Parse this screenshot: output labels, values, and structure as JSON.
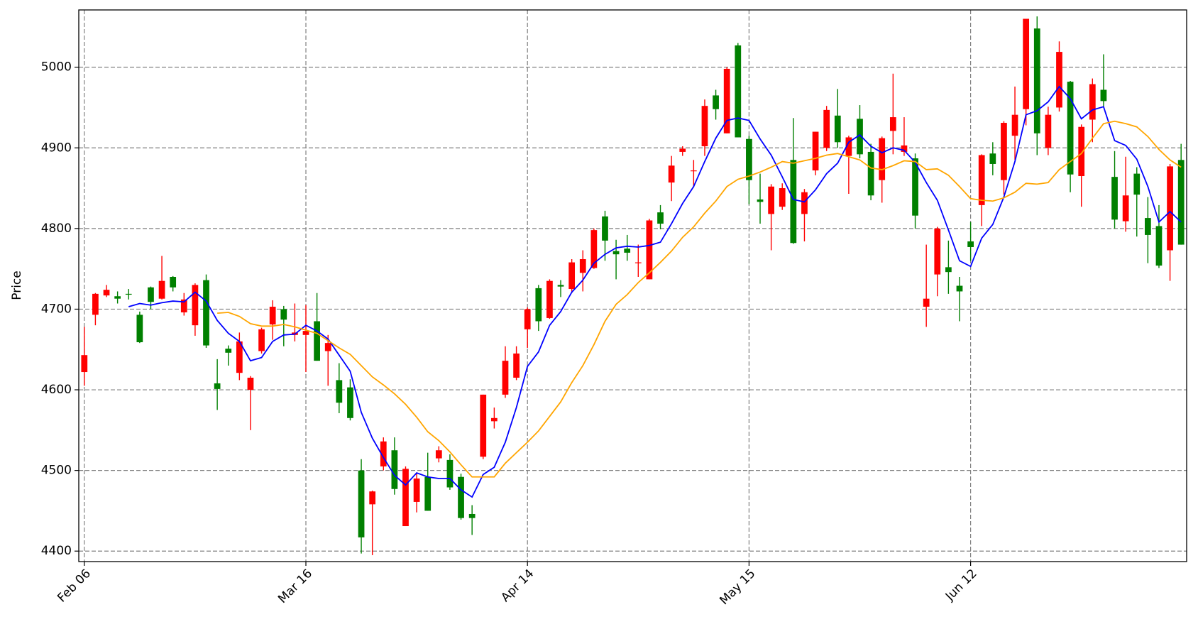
{
  "chart_data": {
    "type": "candlestick",
    "ylabel": "Price",
    "categories": [
      "Feb 06",
      null,
      null,
      null,
      null,
      null,
      null,
      null,
      null,
      null,
      null,
      null,
      null,
      null,
      null,
      null,
      null,
      null,
      null,
      null,
      "Mar 16",
      null,
      null,
      null,
      null,
      null,
      null,
      null,
      null,
      null,
      null,
      null,
      null,
      null,
      null,
      null,
      null,
      null,
      null,
      null,
      "Apr 14",
      null,
      null,
      null,
      null,
      null,
      null,
      null,
      null,
      null,
      null,
      null,
      null,
      null,
      null,
      null,
      null,
      null,
      null,
      null,
      "May 15",
      null,
      null,
      null,
      null,
      null,
      null,
      null,
      null,
      null,
      null,
      null,
      null,
      null,
      null,
      null,
      null,
      null,
      null,
      null,
      "Jun 12",
      null,
      null,
      null,
      null,
      null,
      null,
      null,
      null,
      null,
      null,
      null,
      null,
      null,
      null,
      null,
      null,
      null,
      null,
      null
    ],
    "open": [
      4622,
      4693,
      4717,
      4716,
      4719,
      4693,
      4727,
      4713,
      4740,
      4696,
      4680,
      4736,
      4608,
      4651,
      4621,
      4600,
      4648,
      4681,
      4700,
      4668,
      4668,
      4685,
      4648,
      4612,
      4603,
      4500,
      4458,
      4505,
      4525,
      4431,
      4461,
      4492,
      4515,
      4513,
      4492,
      4446,
      4517,
      4561,
      4594,
      4615,
      4675,
      4726,
      4689,
      4730,
      4725,
      4745,
      4751,
      4815,
      4772,
      4775,
      4757,
      4737,
      4820,
      4857,
      4895,
      4871,
      4902,
      4965,
      4918,
      5027,
      4911,
      4836,
      4818,
      4827,
      4885,
      4818,
      4872,
      4900,
      4940,
      4890,
      4936,
      4895,
      4860,
      4921,
      4895,
      4887,
      4703,
      4743,
      4752,
      4729,
      4784,
      4829,
      4893,
      4860,
      4915,
      4948,
      5048,
      4900,
      4950,
      4982,
      4865,
      4935,
      4972,
      4864,
      4809,
      4868,
      4813,
      4803,
      4773,
      4885
    ],
    "high": [
      4678,
      4720,
      4730,
      4722,
      4725,
      4697,
      4728,
      4766,
      4741,
      4720,
      4732,
      4743,
      4638,
      4655,
      4671,
      4617,
      4677,
      4711,
      4704,
      4707,
      4705,
      4720,
      4668,
      4633,
      4613,
      4514,
      4475,
      4541,
      4541,
      4505,
      4496,
      4522,
      4530,
      4520,
      4496,
      4457,
      4594,
      4578,
      4654,
      4654,
      4702,
      4730,
      4737,
      4736,
      4762,
      4773,
      4800,
      4822,
      4786,
      4792,
      4780,
      4812,
      4829,
      4890,
      4902,
      4885,
      4960,
      4972,
      5000,
      5030,
      4915,
      4868,
      4855,
      4856,
      4937,
      4849,
      4920,
      4952,
      4973,
      4915,
      4953,
      4905,
      4914,
      4992,
      4938,
      4893,
      4780,
      4802,
      4785,
      4740,
      4808,
      4892,
      4907,
      4933,
      4976,
      5060,
      5063,
      4951,
      5032,
      4983,
      4929,
      4986,
      5016,
      4896,
      4889,
      4876,
      4839,
      4829,
      4880,
      4905
    ],
    "low": [
      4605,
      4680,
      4715,
      4707,
      4712,
      4658,
      4700,
      4712,
      4722,
      4692,
      4667,
      4652,
      4575,
      4630,
      4612,
      4550,
      4645,
      4662,
      4654,
      4660,
      4622,
      4636,
      4605,
      4571,
      4562,
      4397,
      4395,
      4500,
      4470,
      4431,
      4448,
      4450,
      4510,
      4476,
      4439,
      4420,
      4514,
      4552,
      4590,
      4612,
      4652,
      4673,
      4688,
      4715,
      4720,
      4722,
      4750,
      4760,
      4737,
      4760,
      4740,
      4737,
      4799,
      4834,
      4890,
      4851,
      4890,
      4935,
      4918,
      4913,
      4830,
      4806,
      4773,
      4823,
      4781,
      4784,
      4866,
      4896,
      4900,
      4843,
      4887,
      4835,
      4832,
      4892,
      4890,
      4800,
      4678,
      4716,
      4719,
      4685,
      4760,
      4803,
      4866,
      4842,
      4885,
      4928,
      4891,
      4891,
      4945,
      4845,
      4827,
      4907,
      4950,
      4800,
      4796,
      4790,
      4757,
      4751,
      4735,
      4780
    ],
    "close": [
      4643,
      4719,
      4724,
      4713,
      4718,
      4659,
      4709,
      4735,
      4727,
      4712,
      4730,
      4655,
      4601,
      4646,
      4660,
      4615,
      4675,
      4703,
      4687,
      4671,
      4673,
      4636,
      4658,
      4584,
      4565,
      4417,
      4474,
      4536,
      4477,
      4502,
      4490,
      4450,
      4525,
      4479,
      4441,
      4441,
      4594,
      4565,
      4636,
      4645,
      4700,
      4685,
      4735,
      4728,
      4758,
      4762,
      4798,
      4785,
      4768,
      4770,
      4758,
      4810,
      4806,
      4878,
      4899,
      4872,
      4952,
      4948,
      4998,
      4913,
      4860,
      4833,
      4852,
      4850,
      4782,
      4845,
      4920,
      4947,
      4907,
      4913,
      4892,
      4841,
      4912,
      4938,
      4903,
      4816,
      4713,
      4800,
      4746,
      4722,
      4777,
      4891,
      4880,
      4931,
      4941,
      5060,
      4918,
      4941,
      5019,
      4867,
      4926,
      4979,
      4958,
      4811,
      4841,
      4842,
      4792,
      4754,
      4877,
      4780
    ],
    "up_color": "#ff0000",
    "down_color": "#008000",
    "lines": [
      {
        "color": "#0000ff",
        "values": [
          null,
          null,
          null,
          null,
          4703,
          4707,
          4705,
          4708,
          4710,
          4709,
          4721,
          4710,
          4686,
          4670,
          4660,
          4636,
          4640,
          4660,
          4668,
          4669,
          4680,
          4673,
          4663,
          4643,
          4623,
          4572,
          4540,
          4516,
          4494,
          4482,
          4497,
          4492,
          4490,
          4490,
          4476,
          4467,
          4495,
          4504,
          4535,
          4578,
          4629,
          4647,
          4680,
          4697,
          4721,
          4736,
          4757,
          4768,
          4776,
          4778,
          4777,
          4779,
          4783,
          4806,
          4831,
          4852,
          4883,
          4912,
          4934,
          4937,
          4934,
          4911,
          4891,
          4864,
          4836,
          4833,
          4848,
          4868,
          4881,
          4907,
          4916,
          4902,
          4894,
          4900,
          4897,
          4882,
          4857,
          4835,
          4798,
          4760,
          4753,
          4788,
          4805,
          4839,
          4883,
          4941,
          4946,
          4957,
          4976,
          4961,
          4936,
          4947,
          4951,
          4909,
          4903,
          4886,
          4852,
          4808,
          4821,
          4808
        ]
      },
      {
        "color": "#ffa500",
        "values": [
          null,
          null,
          null,
          null,
          null,
          null,
          null,
          null,
          null,
          null,
          null,
          null,
          4695,
          4696,
          4691,
          4682,
          4679,
          4679,
          4681,
          4678,
          4674,
          4670,
          4661,
          4652,
          4644,
          4630,
          4616,
          4606,
          4595,
          4582,
          4566,
          4548,
          4537,
          4523,
          4507,
          4492,
          4492,
          4492,
          4509,
          4522,
          4535,
          4549,
          4567,
          4585,
          4609,
          4630,
          4656,
          4685,
          4706,
          4718,
          4733,
          4745,
          4758,
          4772,
          4789,
          4802,
          4819,
          4834,
          4852,
          4861,
          4865,
          4870,
          4876,
          4883,
          4881,
          4884,
          4887,
          4891,
          4893,
          4889,
          4885,
          4875,
          4873,
          4878,
          4884,
          4883,
          4873,
          4874,
          4866,
          4852,
          4837,
          4835,
          4834,
          4838,
          4845,
          4856,
          4855,
          4857,
          4873,
          4883,
          4893,
          4912,
          4930,
          4933,
          4930,
          4926,
          4914,
          4898,
          4885,
          4876
        ]
      }
    ],
    "ylim": [
      4387,
      5071
    ],
    "yticks": [
      4400,
      4500,
      4600,
      4700,
      4800,
      4900,
      5000
    ],
    "grid": true
  }
}
